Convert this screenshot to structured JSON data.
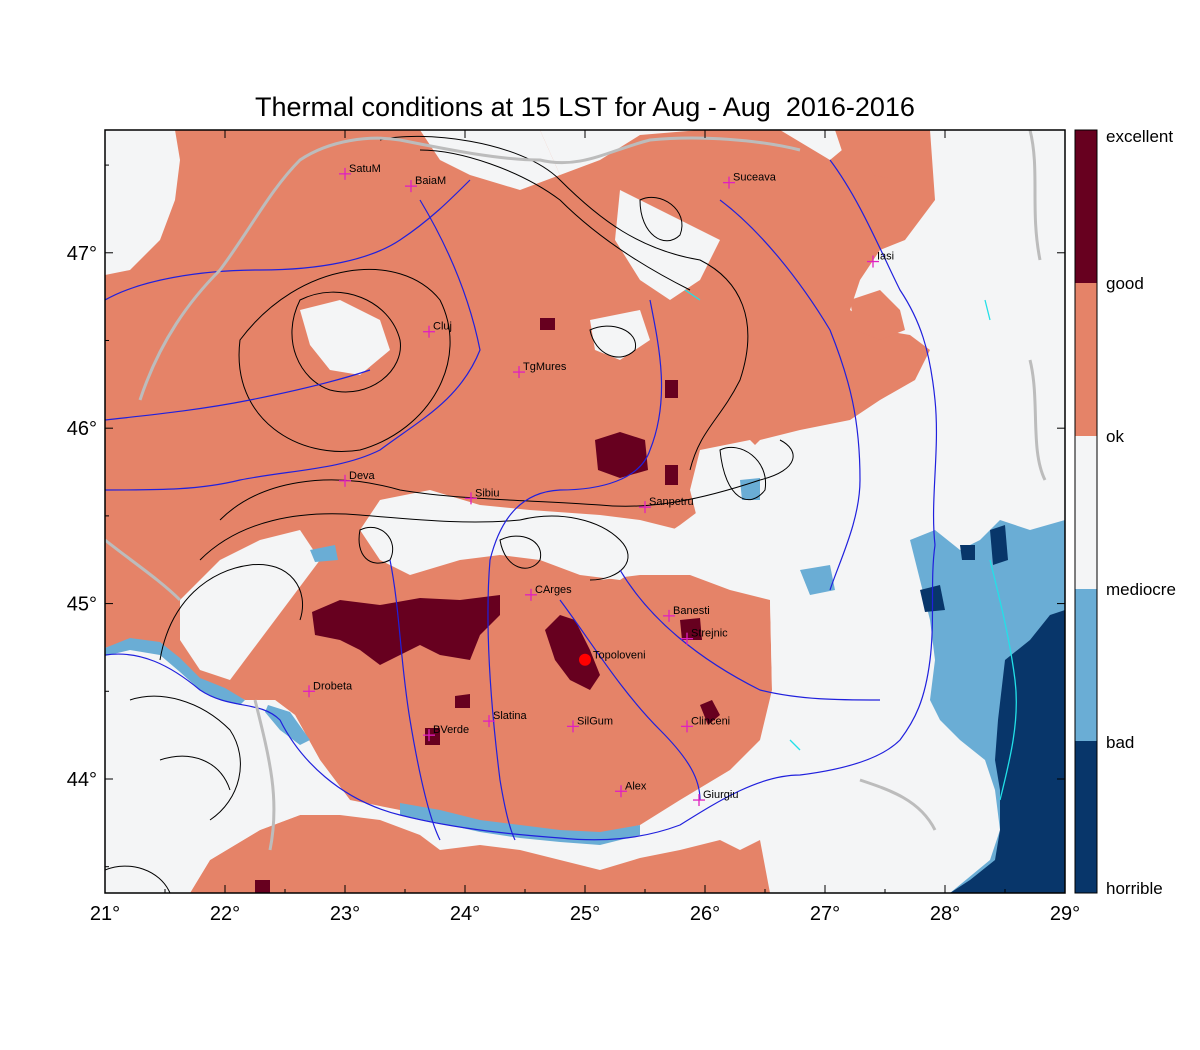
{
  "title": "Thermal conditions at 15 LST for Aug - Aug  2016-2016",
  "map": {
    "lon_range": [
      21,
      29
    ],
    "lat_range": [
      43.35,
      47.7
    ],
    "x_ticks": [
      {
        "value": 21,
        "label": "21°"
      },
      {
        "value": 22,
        "label": "22°"
      },
      {
        "value": 23,
        "label": "23°"
      },
      {
        "value": 24,
        "label": "24°"
      },
      {
        "value": 25,
        "label": "25°"
      },
      {
        "value": 26,
        "label": "26°"
      },
      {
        "value": 27,
        "label": "27°"
      },
      {
        "value": 28,
        "label": "28°"
      },
      {
        "value": 29,
        "label": "29°"
      }
    ],
    "y_ticks": [
      {
        "value": 44,
        "label": "44°"
      },
      {
        "value": 45,
        "label": "45°"
      },
      {
        "value": 46,
        "label": "46°"
      },
      {
        "value": 47,
        "label": "47°"
      }
    ],
    "colors": {
      "excellent": "#67001f",
      "good": "#e58368",
      "ok": "#f4f5f6",
      "mediocre": "#6aadd5",
      "bad": "#08366a",
      "border": "#bcbcbc",
      "river": "#2020dd",
      "lake": "#22e0e8",
      "contour": "#000000",
      "city_marker": "#e020c0",
      "highlight": "#ff0000"
    },
    "cities": [
      {
        "name": "SatuM",
        "lon": 23.0,
        "lat": 47.45
      },
      {
        "name": "BaiaM",
        "lon": 23.55,
        "lat": 47.38
      },
      {
        "name": "Suceava",
        "lon": 26.2,
        "lat": 47.4
      },
      {
        "name": "Iasi",
        "lon": 27.4,
        "lat": 46.95
      },
      {
        "name": "Cluj",
        "lon": 23.7,
        "lat": 46.55
      },
      {
        "name": "TgMures",
        "lon": 24.45,
        "lat": 46.32
      },
      {
        "name": "Deva",
        "lon": 23.0,
        "lat": 45.7
      },
      {
        "name": "Sibiu",
        "lon": 24.05,
        "lat": 45.6
      },
      {
        "name": "Sanpetru",
        "lon": 25.5,
        "lat": 45.55
      },
      {
        "name": "CArges",
        "lon": 24.55,
        "lat": 45.05
      },
      {
        "name": "Banesti",
        "lon": 25.7,
        "lat": 44.93
      },
      {
        "name": "Strejnic",
        "lon": 25.85,
        "lat": 44.8
      },
      {
        "name": "Drobeta",
        "lon": 22.7,
        "lat": 44.5
      },
      {
        "name": "Slatina",
        "lon": 24.2,
        "lat": 44.33
      },
      {
        "name": "SilGum",
        "lon": 24.9,
        "lat": 44.3
      },
      {
        "name": "Clinceni",
        "lon": 25.85,
        "lat": 44.3
      },
      {
        "name": "BVerde",
        "lon": 23.7,
        "lat": 44.25
      },
      {
        "name": "Alex",
        "lon": 25.3,
        "lat": 43.93
      },
      {
        "name": "Giurgiu",
        "lon": 25.95,
        "lat": 43.88
      }
    ],
    "highlight_point": {
      "name": "Topoloveni",
      "lon": 25.0,
      "lat": 44.68
    }
  },
  "colorbar": {
    "labels": [
      "excellent",
      "good",
      "ok",
      "mediocre",
      "bad",
      "horrible"
    ]
  }
}
